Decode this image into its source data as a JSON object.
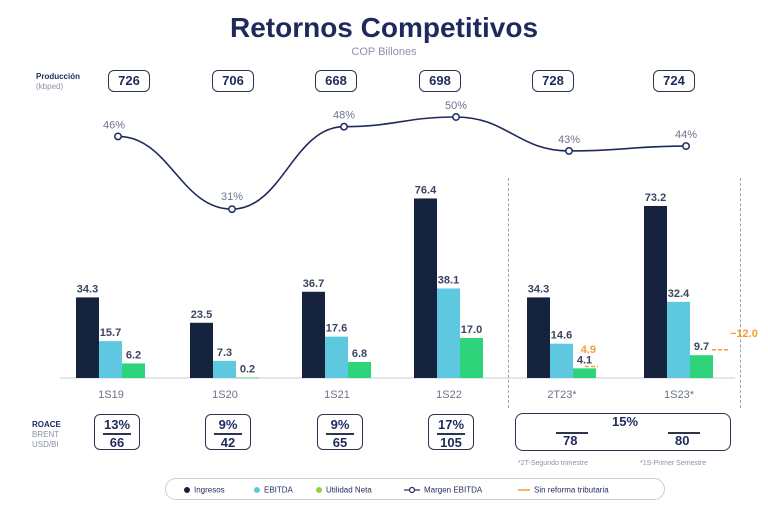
{
  "title": "Retornos Competitivos",
  "subtitle": "COP Billones",
  "production": {
    "label": "Producción",
    "unit": "(kbped)",
    "values": [
      "726",
      "706",
      "668",
      "698",
      "728",
      "724"
    ]
  },
  "roace": {
    "label": "ROACE",
    "brent_label": "BRENT",
    "brent_unit": "USD/Bl",
    "items": [
      {
        "pct": "13%",
        "brent": "66"
      },
      {
        "pct": "9%",
        "brent": "42"
      },
      {
        "pct": "9%",
        "brent": "65"
      },
      {
        "pct": "17%",
        "brent": "105"
      }
    ],
    "group": {
      "pct": "15%",
      "brent": [
        "78",
        "80"
      ]
    }
  },
  "footnotes": [
    "*2T-Segundo trimestre",
    "*1S-Primer Semestre"
  ],
  "colors": {
    "ingresos": "#16233f",
    "ebitda": "#5ec8e0",
    "utilidad": "#2ed47a",
    "margen_line": "#1f2a5c",
    "sin_reforma": "#f0a030"
  },
  "chart_data": {
    "type": "bar",
    "title": "Retornos Competitivos",
    "subtitle": "COP Billones",
    "categories": [
      "1S19",
      "1S20",
      "1S21",
      "1S22",
      "2T23*",
      "1S23*"
    ],
    "series": [
      {
        "name": "Ingresos",
        "values": [
          34.3,
          23.5,
          36.7,
          76.4,
          34.3,
          73.2
        ]
      },
      {
        "name": "EBITDA",
        "values": [
          15.7,
          7.3,
          17.6,
          38.1,
          14.6,
          32.4
        ]
      },
      {
        "name": "Utilidad Neta",
        "values": [
          6.2,
          0.2,
          6.8,
          17.0,
          4.1,
          9.7
        ]
      }
    ],
    "line_series": {
      "name": "Margen EBITDA",
      "values": [
        46,
        31,
        48,
        50,
        43,
        44
      ],
      "labels": [
        "46%",
        "31%",
        "48%",
        "50%",
        "43%",
        "44%"
      ]
    },
    "sin_reforma": {
      "name": "Sin reforma tributaria",
      "values": [
        null,
        null,
        null,
        null,
        4.9,
        12.0
      ],
      "labels": [
        "",
        "",
        "",
        "",
        "4.9",
        "12.0"
      ]
    },
    "value_labels": {
      "Ingresos": [
        "34.3",
        "23.5",
        "36.7",
        "76.4",
        "34.3",
        "73.2"
      ],
      "EBITDA": [
        "15.7",
        "7.3",
        "17.6",
        "38.1",
        "14.6",
        "32.4"
      ],
      "Utilidad Neta": [
        "6.2",
        "0.2",
        "6.8",
        "17.0",
        "4.1",
        "9.7"
      ]
    },
    "legend": [
      "Ingresos",
      "EBITDA",
      "Utilidad Neta",
      "Margen EBITDA",
      "Sin reforma tributaria"
    ],
    "legend_position": "bottom",
    "grid": false
  }
}
